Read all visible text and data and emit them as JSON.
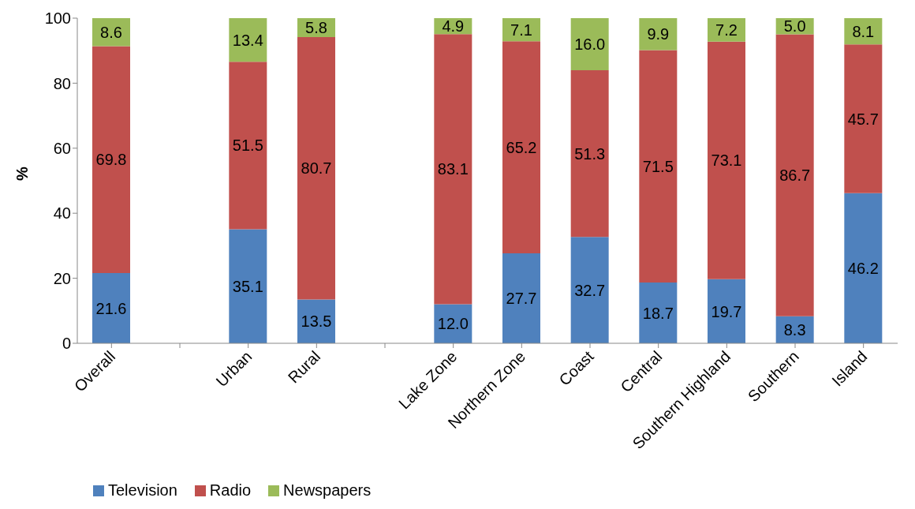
{
  "chart_data": {
    "type": "bar",
    "stacked": true,
    "ylabel": "%",
    "categories": [
      "Overall",
      null,
      "Urban",
      "Rural",
      null,
      "Lake Zone",
      "Northern Zone",
      "Coast",
      "Central",
      "Southern Highland",
      "Southern",
      "Island"
    ],
    "series": [
      {
        "name": "Television",
        "color": "#4f81bd",
        "values": [
          21.6,
          null,
          35.1,
          13.5,
          null,
          12,
          27.7,
          32.7,
          18.7,
          19.7,
          8.3,
          46.2
        ],
        "value_labels": [
          "21.6",
          null,
          "35.1",
          "13.5",
          null,
          "12.0",
          "27.7",
          "32.7",
          "18.7",
          "19.7",
          "8.3",
          "46.2"
        ]
      },
      {
        "name": "Radio",
        "color": "#c0504d",
        "values": [
          69.8,
          null,
          51.5,
          80.7,
          null,
          83.1,
          65.2,
          51.3,
          71.5,
          73.1,
          86.7,
          45.7
        ],
        "value_labels": [
          "69.8",
          null,
          "51.5",
          "80.7",
          null,
          "83.1",
          "65.2",
          "51.3",
          "71.5",
          "73.1",
          "86.7",
          "45.7"
        ]
      },
      {
        "name": "Newspapers",
        "color": "#9bbb59",
        "values": [
          8.6,
          null,
          13.4,
          5.8,
          null,
          4.9,
          7.1,
          16,
          9.9,
          7.2,
          5,
          8.1
        ],
        "value_labels": [
          "8.6",
          null,
          "13.4",
          "5.8",
          null,
          "4.9",
          "7.1",
          "16.0",
          "9.9",
          "7.2",
          "5.0",
          "8.1"
        ]
      }
    ],
    "ylim": [
      0,
      100
    ],
    "yticks": [
      0,
      20,
      40,
      60,
      80,
      100
    ],
    "legend": "bottom left"
  }
}
